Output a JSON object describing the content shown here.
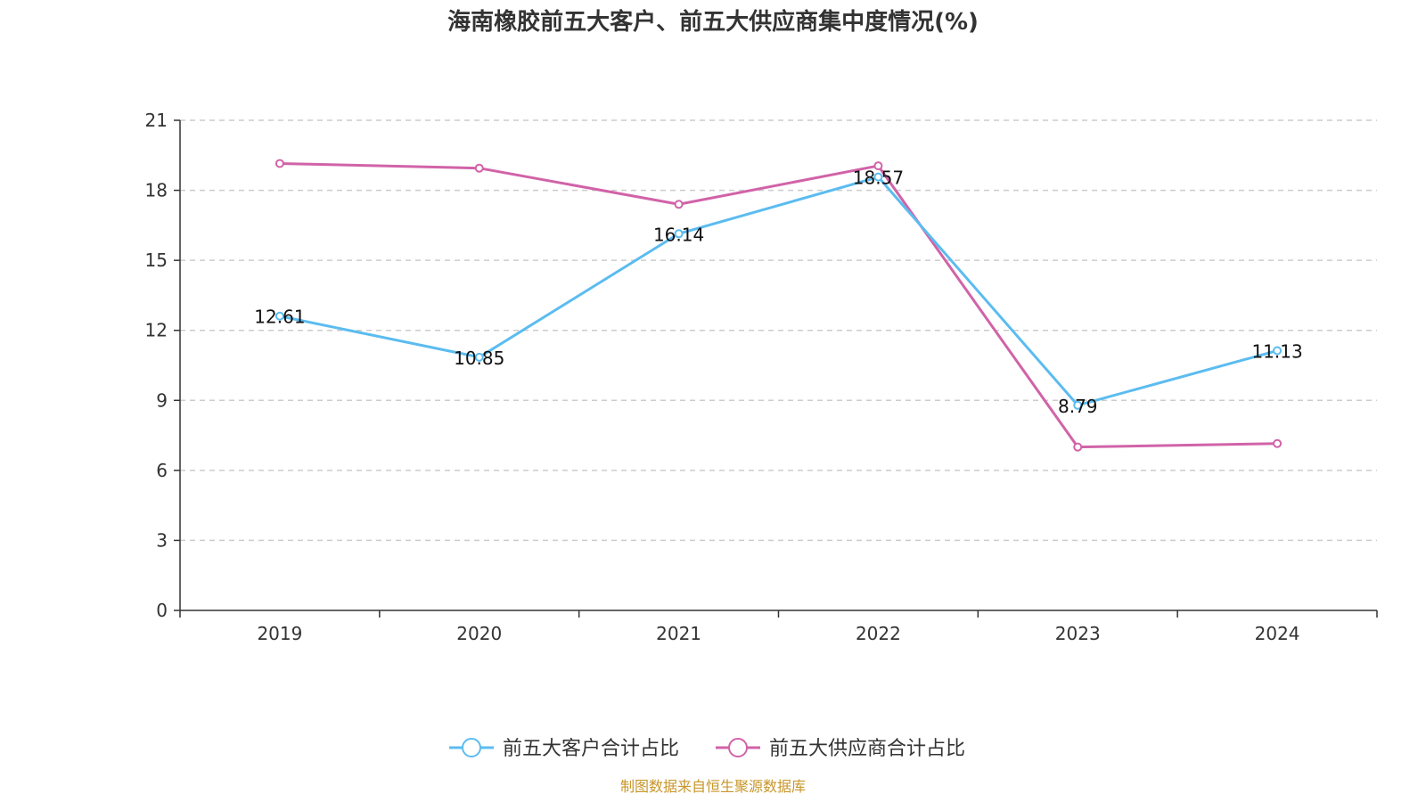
{
  "chart_data": {
    "type": "line",
    "title": "海南橡胶前五大客户、前五大供应商集中度情况(%)",
    "categories": [
      "2019",
      "2020",
      "2021",
      "2022",
      "2023",
      "2024"
    ],
    "ylim": [
      0,
      21
    ],
    "yticks": [
      0,
      3,
      6,
      9,
      12,
      15,
      18,
      21
    ],
    "grid": true,
    "legend_position": "bottom",
    "series": [
      {
        "name": "前五大客户合计占比",
        "color": "#5bbcf0",
        "values": [
          12.61,
          10.85,
          16.14,
          18.57,
          8.79,
          11.13
        ],
        "labels": [
          "12.61",
          "10.85",
          "16.14",
          "18.57",
          "8.79",
          "11.13"
        ]
      },
      {
        "name": "前五大供应商合计占比",
        "color": "#d163a8",
        "values": [
          19.15,
          18.95,
          17.4,
          19.05,
          7.0,
          7.15
        ]
      }
    ]
  },
  "source": "制图数据来自恒生聚源数据库"
}
